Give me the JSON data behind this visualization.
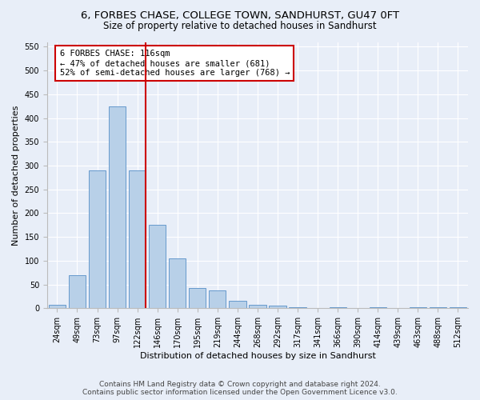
{
  "title": "6, FORBES CHASE, COLLEGE TOWN, SANDHURST, GU47 0FT",
  "subtitle": "Size of property relative to detached houses in Sandhurst",
  "xlabel": "Distribution of detached houses by size in Sandhurst",
  "ylabel": "Number of detached properties",
  "bar_categories": [
    "24sqm",
    "49sqm",
    "73sqm",
    "97sqm",
    "122sqm",
    "146sqm",
    "170sqm",
    "195sqm",
    "219sqm",
    "244sqm",
    "268sqm",
    "292sqm",
    "317sqm",
    "341sqm",
    "366sqm",
    "390sqm",
    "414sqm",
    "439sqm",
    "463sqm",
    "488sqm",
    "512sqm"
  ],
  "bar_values": [
    8,
    70,
    290,
    425,
    290,
    175,
    105,
    43,
    37,
    15,
    8,
    5,
    3,
    0,
    3,
    0,
    3,
    0,
    3,
    3,
    3
  ],
  "bar_color": "#b8d0e8",
  "bar_edgecolor": "#6699cc",
  "background_color": "#e8eef8",
  "grid_color": "#ffffff",
  "vline_x_index": 4,
  "vline_color": "#cc0000",
  "annotation_text": "6 FORBES CHASE: 116sqm\n← 47% of detached houses are smaller (681)\n52% of semi-detached houses are larger (768) →",
  "annotation_box_color": "#ffffff",
  "annotation_box_edgecolor": "#cc0000",
  "ylim": [
    0,
    560
  ],
  "yticks": [
    0,
    50,
    100,
    150,
    200,
    250,
    300,
    350,
    400,
    450,
    500,
    550
  ],
  "footer_line1": "Contains HM Land Registry data © Crown copyright and database right 2024.",
  "footer_line2": "Contains public sector information licensed under the Open Government Licence v3.0.",
  "title_fontsize": 9.5,
  "subtitle_fontsize": 8.5,
  "axis_label_fontsize": 8,
  "tick_fontsize": 7,
  "annotation_fontsize": 7.5,
  "footer_fontsize": 6.5
}
